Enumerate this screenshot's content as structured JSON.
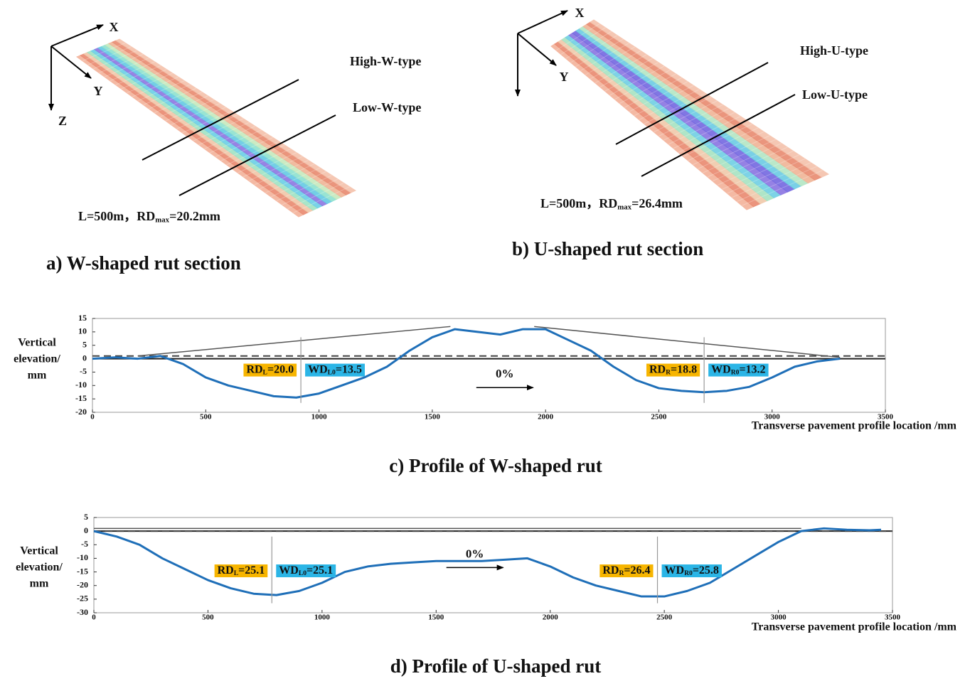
{
  "panels": [
    {
      "axes": [
        "X",
        "Y",
        "Z"
      ],
      "types": [
        "High-W-type",
        "Low-W-type"
      ],
      "stats": [
        "L=500m，RD",
        "max",
        "=20.2mm"
      ],
      "caption": "a) W-shaped rut section"
    },
    {
      "axes": [
        "X",
        "Y"
      ],
      "types": [
        "High-U-type",
        "Low-U-type"
      ],
      "stats": [
        "L=500m，RD",
        "max",
        "=26.4mm"
      ],
      "caption": "b) U-shaped rut section"
    }
  ],
  "chart_data": [
    {
      "type": "line",
      "title": "c) Profile of W-shaped rut",
      "xlabel": "Transverse pavement profile location /mm",
      "ylabel": [
        "Vertical",
        "elevation/",
        "mm"
      ],
      "x": [
        0,
        100,
        200,
        300,
        400,
        500,
        600,
        700,
        800,
        900,
        1000,
        1100,
        1200,
        1300,
        1400,
        1500,
        1600,
        1700,
        1800,
        1900,
        2000,
        2100,
        2200,
        2300,
        2400,
        2500,
        2600,
        2700,
        2800,
        2900,
        3000,
        3100,
        3200,
        3300
      ],
      "series": [
        {
          "color": "#1f6fb8",
          "values": [
            0,
            0.5,
            0,
            1,
            -2,
            -7,
            -10,
            -12,
            -14,
            -14.5,
            -13,
            -10,
            -7,
            -3,
            3,
            8,
            11,
            10,
            9,
            11,
            11,
            7,
            3,
            -3,
            -8,
            -11,
            -12,
            -12.5,
            -12,
            -10.5,
            -7,
            -3,
            -1,
            0
          ]
        }
      ],
      "xlim": [
        0,
        3500
      ],
      "xticks": [
        0,
        500,
        1000,
        1500,
        2000,
        2500,
        3000,
        3500
      ],
      "ylim": [
        -20,
        15
      ],
      "yticks": [
        -20,
        -15,
        -10,
        -5,
        0,
        5,
        10,
        15
      ],
      "datum": 1,
      "envelope": [
        {
          "x": [
            200,
            1580
          ],
          "y": [
            1,
            12
          ]
        },
        {
          "x": [
            1950,
            3300
          ],
          "y": [
            12,
            0.5
          ]
        }
      ],
      "slope_label": "0%",
      "annotations": [
        {
          "x": 920,
          "rd": [
            "RD",
            "L",
            "=20.0"
          ],
          "wd": [
            "WD",
            "L0",
            "=13.5"
          ]
        },
        {
          "x": 2700,
          "rd": [
            "RD",
            "R",
            "=18.8"
          ],
          "wd": [
            "WD",
            "R0",
            "=13.2"
          ]
        }
      ]
    },
    {
      "type": "line",
      "title": "d) Profile of U-shaped rut",
      "xlabel": "Transverse pavement profile location /mm",
      "ylabel": [
        "Vertical",
        "elevation/",
        "mm"
      ],
      "x": [
        0,
        100,
        200,
        300,
        400,
        500,
        600,
        700,
        800,
        900,
        1000,
        1100,
        1200,
        1300,
        1400,
        1500,
        1600,
        1700,
        1800,
        1900,
        2000,
        2100,
        2200,
        2300,
        2400,
        2500,
        2600,
        2700,
        2800,
        2900,
        3000,
        3100,
        3200,
        3300,
        3400,
        3450
      ],
      "series": [
        {
          "color": "#1f6fb8",
          "values": [
            0,
            -2,
            -5,
            -10,
            -14,
            -18,
            -21,
            -23,
            -23.5,
            -22,
            -19,
            -15,
            -13,
            -12,
            -11.5,
            -11,
            -11,
            -11,
            -10.5,
            -10,
            -13,
            -17,
            -20,
            -22,
            -24,
            -24,
            -22,
            -19,
            -14,
            -9,
            -4,
            0,
            1,
            0.5,
            0.3,
            0.5
          ]
        }
      ],
      "xlim": [
        0,
        3500
      ],
      "xticks": [
        0,
        500,
        1000,
        1500,
        2000,
        2500,
        3000,
        3500
      ],
      "ylim": [
        -30,
        5
      ],
      "yticks": [
        -30,
        -25,
        -20,
        -15,
        -10,
        -5,
        0,
        5
      ],
      "datum": 0,
      "envelope": [
        {
          "x": [
            0,
            3100
          ],
          "y": [
            1,
            1
          ]
        }
      ],
      "slope_label": "0%",
      "annotations": [
        {
          "x": 780,
          "rd": [
            "RD",
            "L",
            "=25.1"
          ],
          "wd": [
            "WD",
            "L0",
            "=25.1"
          ]
        },
        {
          "x": 2470,
          "rd": [
            "RD",
            "R",
            "=26.4"
          ],
          "wd": [
            "WD",
            "R0",
            "=25.8"
          ]
        }
      ]
    }
  ]
}
